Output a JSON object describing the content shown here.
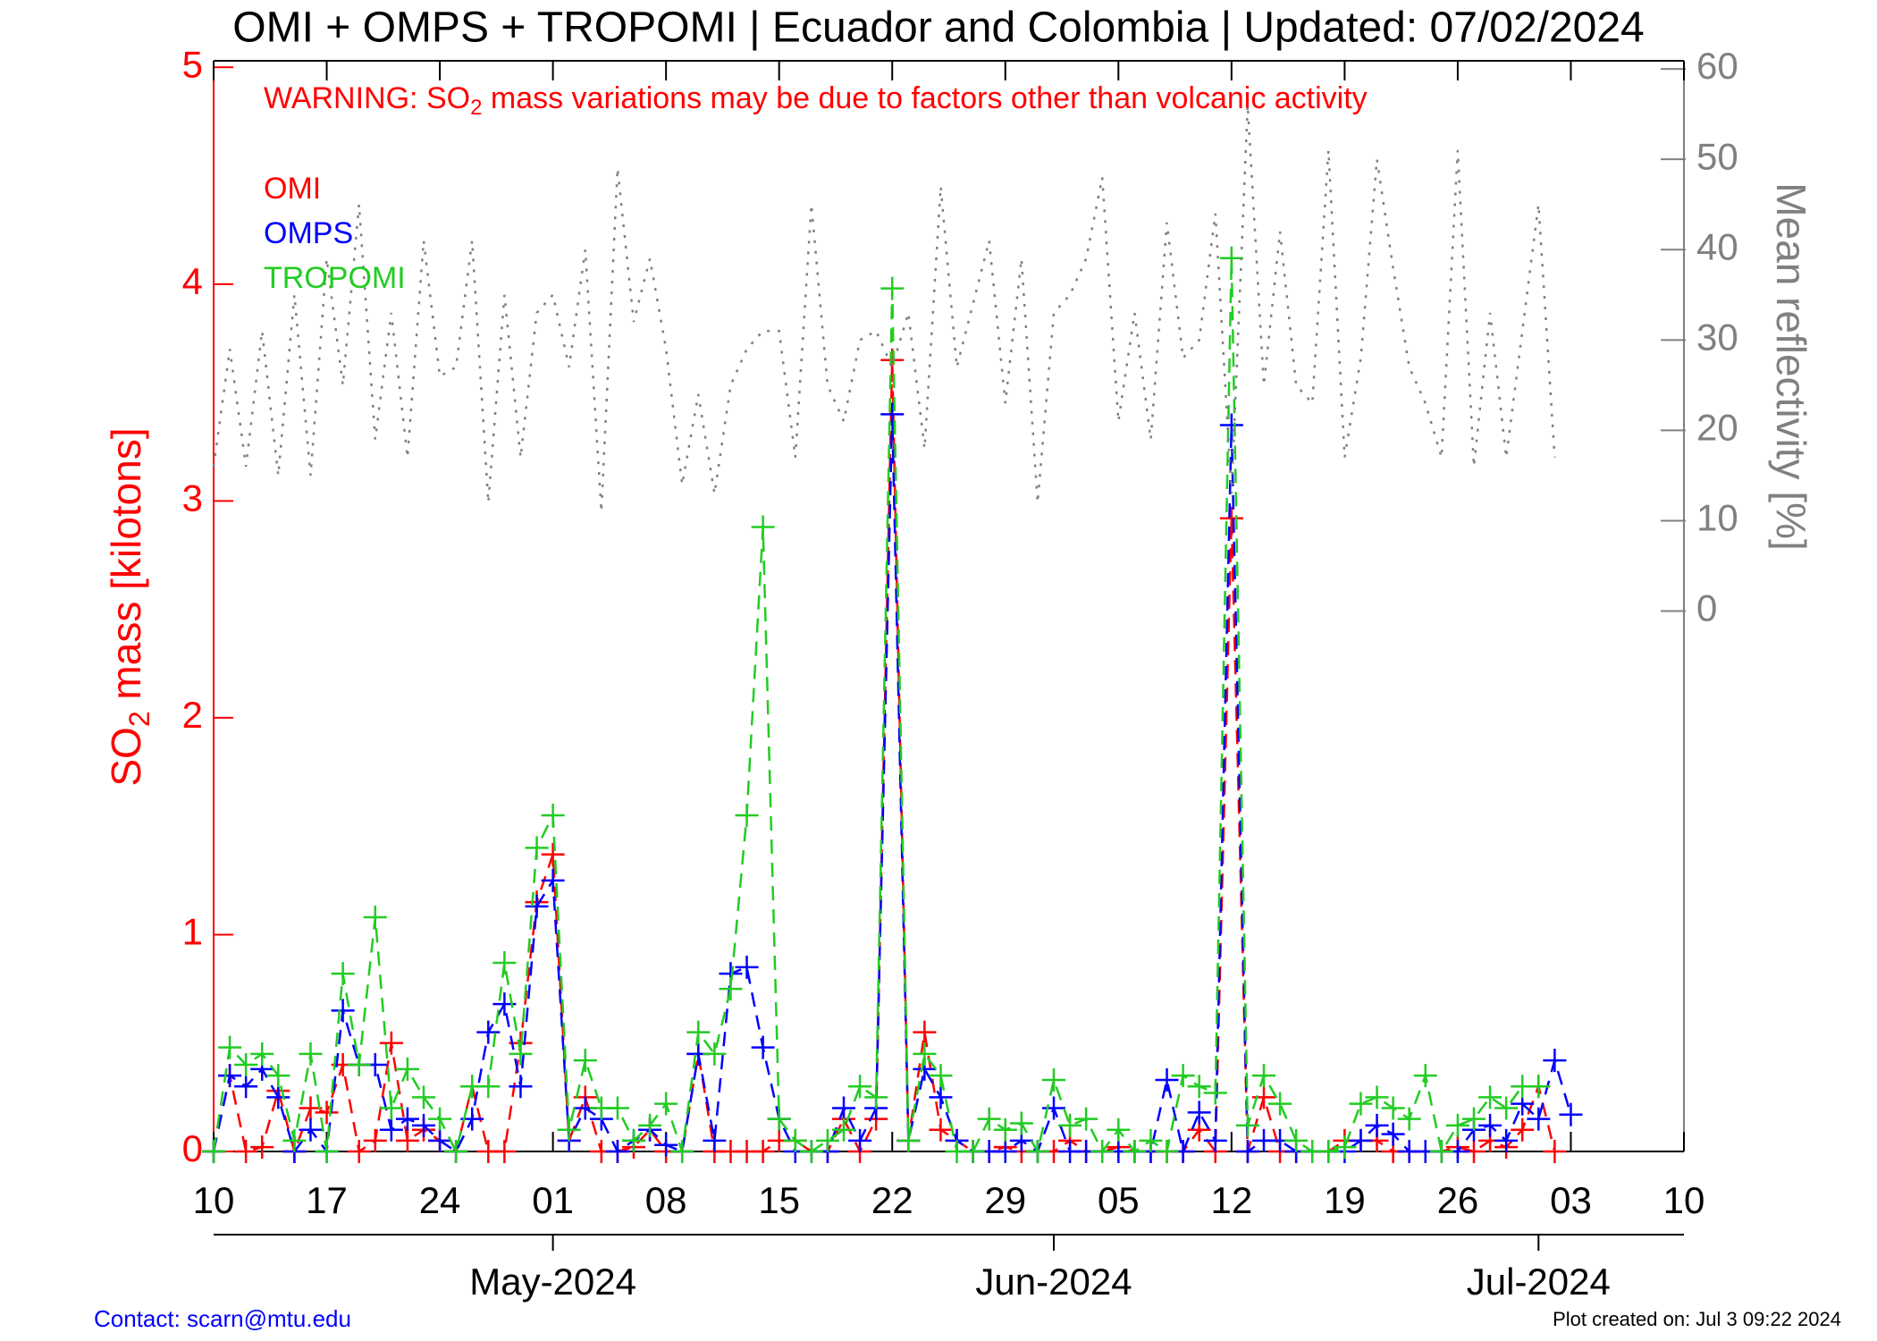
{
  "chart_data": {
    "type": "line",
    "title": "OMI + OMPS + TROPOMI | Ecuador and Colombia | Updated: 07/02/2024",
    "warning": {
      "before": "WARNING: SO",
      "sub": "2",
      "after": " mass variations may be due to factors other than volcanic activity"
    },
    "ylabel": {
      "before": "SO",
      "sub": "2",
      "after": " mass [kilotons]"
    },
    "y2label": "Mean reflectivity [%]",
    "contact": "Contact: scarn@mtu.edu",
    "created": "Plot created on: Jul  3 09:22 2024",
    "x": [
      "2024-04-10",
      "2024-04-11",
      "2024-04-12",
      "2024-04-13",
      "2024-04-14",
      "2024-04-15",
      "2024-04-16",
      "2024-04-17",
      "2024-04-18",
      "2024-04-19",
      "2024-04-20",
      "2024-04-21",
      "2024-04-22",
      "2024-04-23",
      "2024-04-24",
      "2024-04-25",
      "2024-04-26",
      "2024-04-27",
      "2024-04-28",
      "2024-04-29",
      "2024-04-30",
      "2024-05-01",
      "2024-05-02",
      "2024-05-03",
      "2024-05-04",
      "2024-05-05",
      "2024-05-06",
      "2024-05-07",
      "2024-05-08",
      "2024-05-09",
      "2024-05-10",
      "2024-05-11",
      "2024-05-12",
      "2024-05-13",
      "2024-05-14",
      "2024-05-15",
      "2024-05-16",
      "2024-05-17",
      "2024-05-18",
      "2024-05-19",
      "2024-05-20",
      "2024-05-21",
      "2024-05-22",
      "2024-05-23",
      "2024-05-24",
      "2024-05-25",
      "2024-05-26",
      "2024-05-27",
      "2024-05-28",
      "2024-05-29",
      "2024-05-30",
      "2024-05-31",
      "2024-06-01",
      "2024-06-02",
      "2024-06-03",
      "2024-06-04",
      "2024-06-05",
      "2024-06-06",
      "2024-06-07",
      "2024-06-08",
      "2024-06-09",
      "2024-06-10",
      "2024-06-11",
      "2024-06-12",
      "2024-06-13",
      "2024-06-14",
      "2024-06-15",
      "2024-06-16",
      "2024-06-17",
      "2024-06-18",
      "2024-06-19",
      "2024-06-20",
      "2024-06-21",
      "2024-06-22",
      "2024-06-23",
      "2024-06-24",
      "2024-06-25",
      "2024-06-26",
      "2024-06-27",
      "2024-06-28",
      "2024-06-29",
      "2024-06-30",
      "2024-07-01",
      "2024-07-02",
      "2024-07-03"
    ],
    "series": [
      {
        "name": "OMI",
        "color": "#ff0000",
        "dash": "dashed",
        "marker": "plus",
        "values": [
          0,
          0.35,
          0,
          0.02,
          0.28,
          0,
          0.2,
          0.18,
          0.4,
          0,
          0.05,
          0.5,
          0.05,
          0.1,
          0.05,
          0,
          0.3,
          0,
          0,
          0.5,
          1.15,
          1.37,
          0.05,
          0.25,
          0,
          0,
          0.02,
          0.1,
          0,
          0,
          0.45,
          0,
          0,
          0,
          0,
          0.05,
          0.05,
          0,
          0,
          0.15,
          0,
          0.15,
          3.65,
          0.05,
          0.55,
          0.1,
          0.05,
          0,
          0,
          0.02,
          0,
          0,
          0,
          0.05,
          0,
          0,
          0.02,
          0,
          0,
          0,
          0,
          0.1,
          0,
          2.92,
          0,
          0.25,
          0,
          0,
          0,
          0,
          0.05,
          0.05,
          0.05,
          0,
          0,
          0,
          0,
          0.02,
          0,
          0.05,
          0.02,
          0.1,
          0.3,
          0,
          null
        ]
      },
      {
        "name": "OMPS",
        "color": "#0000ff",
        "dash": "dashed",
        "marker": "plus",
        "values": [
          0,
          0.35,
          0.3,
          0.38,
          0.25,
          0,
          0.1,
          0,
          0.65,
          0.4,
          0.4,
          0.1,
          0.15,
          0.12,
          0.05,
          0,
          0.15,
          0.55,
          0.68,
          0.3,
          1.13,
          1.25,
          0.05,
          0.2,
          0.15,
          0,
          0.05,
          0.1,
          0.03,
          0,
          0.45,
          0.05,
          0.82,
          0.85,
          0.48,
          0.15,
          0,
          0,
          0,
          0.2,
          0.05,
          0.2,
          3.4,
          0.05,
          0.38,
          0.25,
          0.05,
          0,
          0,
          0,
          0.05,
          0,
          0.2,
          0,
          0,
          0,
          0,
          0,
          0,
          0.33,
          0,
          0.18,
          0.05,
          3.35,
          0,
          0.05,
          0.05,
          0,
          0,
          0,
          0,
          0.05,
          0.12,
          0.08,
          0,
          0,
          0,
          0,
          0.1,
          0.12,
          0.05,
          0.22,
          0.15,
          0.42,
          0.17
        ]
      },
      {
        "name": "TROPOMI",
        "color": "#22cc22",
        "dash": "dashed",
        "marker": "plus",
        "values": [
          0,
          0.48,
          0.4,
          0.45,
          0.35,
          0.05,
          0.45,
          0,
          0.82,
          0.4,
          1.08,
          0.2,
          0.38,
          0.25,
          0.15,
          0,
          0.3,
          0.3,
          0.87,
          0.45,
          1.4,
          1.55,
          0.1,
          0.42,
          0.2,
          0.2,
          0.05,
          0.12,
          0.22,
          0,
          0.55,
          0.45,
          0.75,
          1.55,
          2.88,
          0.15,
          0.05,
          0,
          0.05,
          0.1,
          0.3,
          0.25,
          3.98,
          0.05,
          0.45,
          0.35,
          0,
          0,
          0.15,
          0.1,
          0.13,
          0,
          0.33,
          0.12,
          0.15,
          0,
          0.1,
          0,
          0.05,
          0,
          0.35,
          0.3,
          0.27,
          4.12,
          0.12,
          0.35,
          0.22,
          0.05,
          0,
          0,
          0.02,
          0.22,
          0.25,
          0.2,
          0.15,
          0.35,
          0,
          0.12,
          0.15,
          0.25,
          0.2,
          0.3,
          0.3,
          null,
          null
        ]
      },
      {
        "color": "#808080",
        "dash": "dotted",
        "axis": "y2",
        "values": [
          16,
          29,
          16,
          31,
          15,
          35,
          15,
          39,
          25,
          45,
          19,
          33,
          17,
          41,
          26,
          27,
          41,
          12,
          35,
          17,
          33,
          35,
          27,
          40,
          11,
          49,
          32,
          39,
          29,
          14,
          24,
          13,
          25,
          29,
          31,
          31,
          17,
          45,
          25,
          21,
          30,
          31,
          27,
          33,
          18,
          47,
          27,
          34,
          41,
          23,
          39,
          12,
          33,
          35,
          39,
          48,
          21,
          33,
          19,
          43,
          28,
          30,
          44,
          13,
          56,
          25,
          42,
          25,
          23,
          51,
          17,
          28,
          50,
          38,
          27,
          23,
          17,
          51,
          16,
          33,
          17,
          31,
          45,
          17,
          null
        ]
      }
    ],
    "xlim": [
      "2024-04-10",
      "2024-07-10"
    ],
    "xticks": [
      {
        "value": "2024-04-10",
        "label": "10"
      },
      {
        "value": "2024-04-17",
        "label": "17"
      },
      {
        "value": "2024-04-24",
        "label": "24"
      },
      {
        "value": "2024-05-01",
        "label": "01"
      },
      {
        "value": "2024-05-08",
        "label": "08"
      },
      {
        "value": "2024-05-15",
        "label": "15"
      },
      {
        "value": "2024-05-22",
        "label": "22"
      },
      {
        "value": "2024-05-29",
        "label": "29"
      },
      {
        "value": "2024-06-05",
        "label": "05"
      },
      {
        "value": "2024-06-12",
        "label": "12"
      },
      {
        "value": "2024-06-19",
        "label": "19"
      },
      {
        "value": "2024-06-26",
        "label": "26"
      },
      {
        "value": "2024-07-03",
        "label": "03"
      },
      {
        "value": "2024-07-10",
        "label": "10"
      }
    ],
    "month_ticks": [
      {
        "value": "2024-05-01",
        "label": "May-2024"
      },
      {
        "value": "2024-06-01",
        "label": "Jun-2024"
      },
      {
        "value": "2024-07-01",
        "label": "Jul-2024"
      }
    ],
    "ylim": [
      0,
      5.03
    ],
    "yticks": [
      0,
      1,
      2,
      3,
      4,
      5
    ],
    "y2lim": [
      -59.8,
      60.9
    ],
    "y2ticks": [
      0,
      10,
      20,
      30,
      40,
      50,
      60
    ],
    "ycolor": "#ff0000",
    "y2color": "#808080"
  }
}
